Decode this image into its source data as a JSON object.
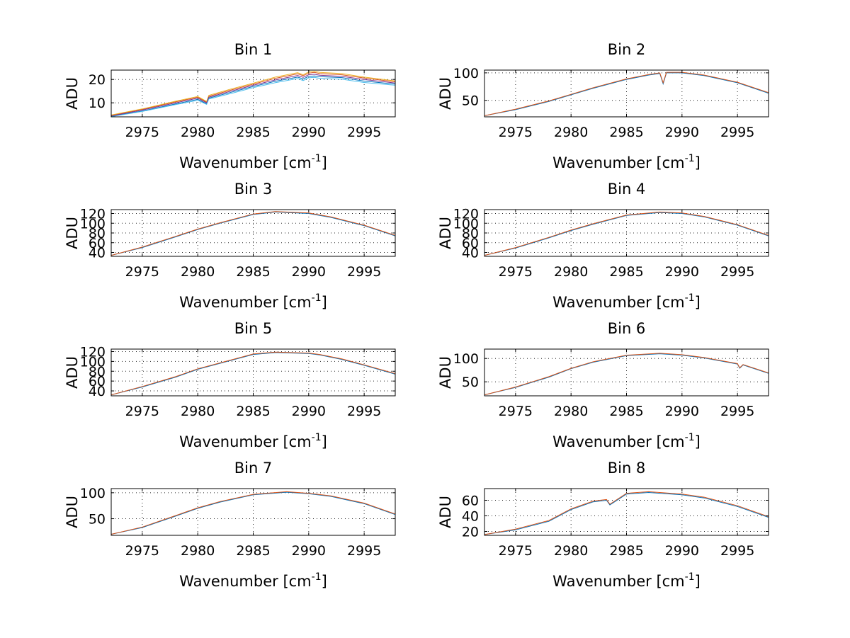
{
  "chart_data": [
    {
      "type": "line",
      "title": "Bin 1",
      "xlabel": "Wavenumber [cm",
      "xlabel_sup": "-1",
      "xlabel_close": "]",
      "ylabel": "ADU",
      "xlim": [
        2972.2,
        2997.8
      ],
      "ylim": [
        4,
        24
      ],
      "xticks": [
        2975,
        2980,
        2985,
        2990,
        2995
      ],
      "yticks": [
        10,
        20
      ],
      "x": [
        2972.2,
        2975,
        2978,
        2980,
        2980.8,
        2981,
        2983,
        2985,
        2987,
        2989,
        2989.5,
        2990,
        2990.5,
        2991,
        2993,
        2995,
        2997.8
      ],
      "series": [
        {
          "name": "blue",
          "color": "#0072bd",
          "values": [
            4.2,
            6.5,
            9.5,
            11.5,
            9.6,
            12.0,
            14.5,
            17.0,
            19.2,
            21.0,
            20.2,
            21.3,
            21.5,
            21.2,
            20.8,
            19.3,
            18.0
          ]
        },
        {
          "name": "orange",
          "color": "#d95319",
          "values": [
            4.6,
            7.2,
            10.4,
            12.4,
            10.3,
            12.8,
            15.5,
            18.0,
            20.5,
            22.4,
            21.6,
            22.7,
            23.0,
            22.5,
            22.0,
            20.6,
            19.0
          ]
        },
        {
          "name": "yellow",
          "color": "#edb120",
          "values": [
            4.8,
            7.4,
            10.7,
            12.7,
            10.6,
            13.2,
            15.9,
            18.4,
            21.0,
            22.9,
            22.0,
            23.2,
            23.5,
            23.0,
            22.5,
            21.0,
            19.4
          ]
        },
        {
          "name": "purple",
          "color": "#7e2f8e",
          "values": [
            4.4,
            6.9,
            10.0,
            12.0,
            10.0,
            12.4,
            15.0,
            17.5,
            19.8,
            21.7,
            20.9,
            22.0,
            22.2,
            21.8,
            21.3,
            20.0,
            18.5
          ]
        },
        {
          "name": "cyan",
          "color": "#4dbeee",
          "values": [
            4.1,
            6.3,
            9.2,
            11.1,
            9.3,
            11.6,
            14.0,
            16.5,
            18.6,
            20.4,
            19.5,
            20.7,
            20.9,
            20.5,
            20.1,
            18.7,
            17.5
          ]
        }
      ]
    },
    {
      "type": "line",
      "title": "Bin 2",
      "xlabel": "Wavenumber [cm",
      "xlabel_sup": "-1",
      "xlabel_close": "]",
      "ylabel": "ADU",
      "xlim": [
        2972.2,
        2997.8
      ],
      "ylim": [
        20,
        105
      ],
      "xticks": [
        2975,
        2980,
        2985,
        2990,
        2995
      ],
      "yticks": [
        50,
        100
      ],
      "x": [
        2972.2,
        2975,
        2978,
        2980,
        2982,
        2985,
        2987,
        2988,
        2988.3,
        2988.6,
        2990,
        2992,
        2995,
        2997.8
      ],
      "series": [
        {
          "name": "blue",
          "color": "#0072bd",
          "values": [
            22,
            33,
            48,
            60,
            72,
            88,
            96,
            99,
            80,
            100,
            100,
            95,
            82,
            63
          ]
        },
        {
          "name": "orange",
          "color": "#d95319",
          "values": [
            22,
            34,
            49,
            61,
            73,
            89,
            97,
            100,
            82,
            101,
            101,
            96,
            83,
            64
          ]
        }
      ]
    },
    {
      "type": "line",
      "title": "Bin 3",
      "xlabel": "Wavenumber [cm",
      "xlabel_sup": "-1",
      "xlabel_close": "]",
      "ylabel": "ADU",
      "xlim": [
        2972.2,
        2997.8
      ],
      "ylim": [
        32,
        128
      ],
      "xticks": [
        2975,
        2980,
        2985,
        2990,
        2995
      ],
      "yticks": [
        40,
        60,
        80,
        100,
        120
      ],
      "x": [
        2972.2,
        2975,
        2978,
        2980,
        2982,
        2985,
        2987,
        2990,
        2992,
        2995,
        2997.8
      ],
      "series": [
        {
          "name": "blue",
          "color": "#0072bd",
          "values": [
            34,
            50,
            72,
            87,
            100,
            118,
            123,
            120,
            112,
            95,
            74
          ]
        },
        {
          "name": "orange",
          "color": "#d95319",
          "values": [
            34,
            51,
            73,
            88,
            101,
            119,
            124,
            121,
            113,
            96,
            75
          ]
        }
      ]
    },
    {
      "type": "line",
      "title": "Bin 4",
      "xlabel": "Wavenumber [cm",
      "xlabel_sup": "-1",
      "xlabel_close": "]",
      "ylabel": "ADU",
      "xlim": [
        2972.2,
        2997.8
      ],
      "ylim": [
        32,
        128
      ],
      "xticks": [
        2975,
        2980,
        2985,
        2990,
        2995
      ],
      "yticks": [
        40,
        60,
        80,
        100,
        120
      ],
      "x": [
        2972.2,
        2975,
        2978,
        2980,
        2982,
        2985,
        2988,
        2990,
        2992,
        2995,
        2997.8
      ],
      "series": [
        {
          "name": "blue",
          "color": "#0072bd",
          "values": [
            34,
            49,
            70,
            85,
            98,
            116,
            122,
            120,
            113,
            96,
            74
          ]
        },
        {
          "name": "orange",
          "color": "#d95319",
          "values": [
            34,
            50,
            71,
            86,
            99,
            117,
            123,
            121,
            114,
            97,
            75
          ]
        }
      ]
    },
    {
      "type": "line",
      "title": "Bin 5",
      "xlabel": "Wavenumber [cm",
      "xlabel_sup": "-1",
      "xlabel_close": "]",
      "ylabel": "ADU",
      "xlim": [
        2972.2,
        2997.8
      ],
      "ylim": [
        30,
        125
      ],
      "xticks": [
        2975,
        2980,
        2985,
        2990,
        2995
      ],
      "yticks": [
        40,
        60,
        80,
        100,
        120
      ],
      "x": [
        2972.2,
        2975,
        2978,
        2980,
        2982,
        2985,
        2987,
        2990,
        2991,
        2993,
        2995,
        2997.8
      ],
      "series": [
        {
          "name": "blue",
          "color": "#0072bd",
          "values": [
            32,
            48,
            68,
            84,
            96,
            114,
            118,
            116,
            113,
            104,
            92,
            74
          ]
        },
        {
          "name": "orange",
          "color": "#d95319",
          "values": [
            32,
            49,
            69,
            85,
            97,
            115,
            119,
            117,
            114,
            105,
            93,
            75
          ]
        }
      ]
    },
    {
      "type": "line",
      "title": "Bin 6",
      "xlabel": "Wavenumber [cm",
      "xlabel_sup": "-1",
      "xlabel_close": "]",
      "ylabel": "ADU",
      "xlim": [
        2972.2,
        2997.8
      ],
      "ylim": [
        20,
        120
      ],
      "xticks": [
        2975,
        2980,
        2985,
        2990,
        2995
      ],
      "yticks": [
        50,
        100
      ],
      "x": [
        2972.2,
        2975,
        2978,
        2980,
        2982,
        2985,
        2988,
        2990,
        2992,
        2995,
        2995.2,
        2995.5,
        2997.8
      ],
      "series": [
        {
          "name": "blue",
          "color": "#0072bd",
          "values": [
            22,
            38,
            60,
            78,
            92,
            106,
            110,
            107,
            101,
            88,
            79,
            86,
            68
          ]
        },
        {
          "name": "orange",
          "color": "#d95319",
          "values": [
            22,
            39,
            61,
            79,
            93,
            107,
            111,
            108,
            102,
            89,
            80,
            87,
            69
          ]
        }
      ]
    },
    {
      "type": "line",
      "title": "Bin 7",
      "xlabel": "Wavenumber [cm",
      "xlabel_sup": "-1",
      "xlabel_close": "]",
      "ylabel": "ADU",
      "xlim": [
        2972.2,
        2997.8
      ],
      "ylim": [
        18,
        108
      ],
      "xticks": [
        2975,
        2980,
        2985,
        2990,
        2995
      ],
      "yticks": [
        50,
        100
      ],
      "x": [
        2972.2,
        2975,
        2978,
        2980,
        2982,
        2985,
        2988,
        2990,
        2992,
        2995,
        2997.8
      ],
      "series": [
        {
          "name": "blue",
          "color": "#0072bd",
          "values": [
            20,
            33,
            55,
            70,
            82,
            96,
            101,
            98,
            93,
            79,
            58
          ]
        },
        {
          "name": "orange",
          "color": "#d95319",
          "values": [
            20,
            34,
            56,
            71,
            83,
            97,
            102,
            99,
            94,
            80,
            59
          ]
        }
      ]
    },
    {
      "type": "line",
      "title": "Bin 8",
      "xlabel": "Wavenumber [cm",
      "xlabel_sup": "-1",
      "xlabel_close": "]",
      "ylabel": "ADU",
      "xlim": [
        2972.2,
        2997.8
      ],
      "ylim": [
        15,
        75
      ],
      "xticks": [
        2975,
        2980,
        2985,
        2990,
        2995
      ],
      "yticks": [
        20,
        40,
        60
      ],
      "x": [
        2972.2,
        2975,
        2978,
        2980,
        2982,
        2983.2,
        2983.5,
        2985,
        2987,
        2988,
        2990,
        2992,
        2995,
        2997.8
      ],
      "series": [
        {
          "name": "blue",
          "color": "#0072bd",
          "values": [
            16,
            22,
            33,
            48,
            58,
            60,
            54,
            68,
            70,
            69,
            67,
            63,
            52,
            38
          ]
        },
        {
          "name": "orange",
          "color": "#d95319",
          "values": [
            16,
            23,
            34,
            49,
            59,
            61,
            55,
            69,
            71,
            70,
            68,
            64,
            53,
            39
          ]
        }
      ]
    }
  ]
}
